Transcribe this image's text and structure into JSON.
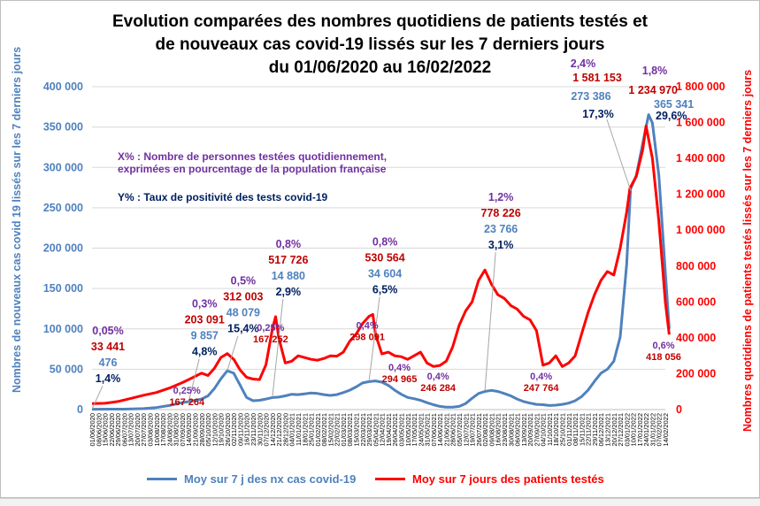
{
  "title_lines": [
    "Evolution comparées des nombres quotidiens de patients testés et",
    "de nouveaux cas covid-19 lissés sur les 7 derniers jours",
    "du 01/06/2020 au 16/02/2022"
  ],
  "notes": {
    "pct_tested": "X% : Nombre de personnes testées quotidiennement,",
    "pct_tested_2": "exprimées en pourcentage de la population française",
    "positivity": "Y% : Taux de positivité des tests covid-19"
  },
  "colors": {
    "cases": "#4f81bd",
    "tested": "#ff0000",
    "tested_label": "#c00000",
    "pct_label": "#7030a0",
    "positivity_label": "#002060",
    "grid": "#d9d9d9"
  },
  "chart_data": {
    "type": "line",
    "title": "Evolution comparées des nombres quotidiens de patients testés et de nouveaux cas covid-19 lissés sur les 7 derniers jours du 01/06/2020 au 16/02/2022",
    "ylabel": "Nombres de nouveaux cas covid 19 lissés sur les 7 derniers jours",
    "y2label": "Nombres quotidiens de patients testés lissés sur les 7 derniers jours",
    "ylim": [
      0,
      400000
    ],
    "y2lim": [
      0,
      1800000
    ],
    "y_ticks": [
      "0",
      "50 000",
      "100 000",
      "150 000",
      "200 000",
      "250 000",
      "300 000",
      "350 000",
      "400 000"
    ],
    "y2_ticks": [
      "0",
      "200 000",
      "400 000",
      "600 000",
      "800 000",
      "1 000 000",
      "1 200 000",
      "1 400 000",
      "1 600 000",
      "1 800 000"
    ],
    "x_ticks": [
      "01/06/2020",
      "08/06/2020",
      "15/06/2020",
      "22/06/2020",
      "29/06/2020",
      "06/07/2020",
      "13/07/2020",
      "20/07/2020",
      "27/07/2020",
      "03/08/2020",
      "10/08/2020",
      "17/08/2020",
      "24/08/2020",
      "31/08/2020",
      "07/09/2020",
      "14/09/2020",
      "21/09/2020",
      "28/09/2020",
      "05/10/2020",
      "12/10/2020",
      "19/10/2020",
      "26/10/2020",
      "02/11/2020",
      "09/11/2020",
      "16/11/2020",
      "23/11/2020",
      "30/11/2020",
      "07/12/2020",
      "14/12/2020",
      "21/12/2020",
      "28/12/2020",
      "04/01/2021",
      "11/01/2021",
      "18/01/2021",
      "25/01/2021",
      "01/02/2021",
      "08/02/2021",
      "15/02/2021",
      "22/02/2021",
      "01/03/2021",
      "08/03/2021",
      "15/03/2021",
      "22/03/2021",
      "29/03/2021",
      "05/04/2021",
      "12/04/2021",
      "19/04/2021",
      "26/04/2021",
      "03/05/2021",
      "10/05/2021",
      "17/05/2021",
      "24/05/2021",
      "31/05/2021",
      "07/06/2021",
      "14/06/2021",
      "21/06/2021",
      "28/06/2021",
      "05/07/2021",
      "12/07/2021",
      "19/07/2021",
      "26/07/2021",
      "02/08/2021",
      "09/08/2021",
      "16/08/2021",
      "23/08/2021",
      "30/08/2021",
      "06/09/2021",
      "13/09/2021",
      "20/09/2021",
      "27/09/2021",
      "04/10/2021",
      "11/10/2021",
      "18/10/2021",
      "25/10/2021",
      "01/11/2021",
      "08/11/2021",
      "15/11/2021",
      "22/11/2021",
      "29/11/2021",
      "06/12/2021",
      "13/12/2021",
      "20/12/2021",
      "27/12/2021",
      "03/01/2022",
      "10/01/2022",
      "17/01/2022",
      "24/01/2022",
      "31/01/2022",
      "07/02/2022",
      "14/02/2022"
    ],
    "series": [
      {
        "name": "Moy sur 7 j des nx cas covid-19",
        "axis": "left",
        "points": [
          [
            0,
            476
          ],
          [
            3,
            500
          ],
          [
            5,
            550
          ],
          [
            8,
            1200
          ],
          [
            10,
            2500
          ],
          [
            12,
            5000
          ],
          [
            14,
            8500
          ],
          [
            15,
            9857
          ],
          [
            17,
            13000
          ],
          [
            18,
            17000
          ],
          [
            19,
            26000
          ],
          [
            20,
            38000
          ],
          [
            21,
            48079
          ],
          [
            22,
            45000
          ],
          [
            23,
            30000
          ],
          [
            24,
            15000
          ],
          [
            25,
            11000
          ],
          [
            26,
            11500
          ],
          [
            27,
            13000
          ],
          [
            28,
            14880
          ],
          [
            29,
            15500
          ],
          [
            30,
            17000
          ],
          [
            31,
            19000
          ],
          [
            32,
            18500
          ],
          [
            33,
            19500
          ],
          [
            34,
            20500
          ],
          [
            35,
            20000
          ],
          [
            36,
            18500
          ],
          [
            37,
            17500
          ],
          [
            38,
            18500
          ],
          [
            39,
            21000
          ],
          [
            40,
            24000
          ],
          [
            41,
            28000
          ],
          [
            42,
            33000
          ],
          [
            43,
            34604
          ],
          [
            44,
            35500
          ],
          [
            45,
            34000
          ],
          [
            46,
            30000
          ],
          [
            47,
            24000
          ],
          [
            48,
            19000
          ],
          [
            49,
            15000
          ],
          [
            50,
            13500
          ],
          [
            51,
            11500
          ],
          [
            52,
            8500
          ],
          [
            53,
            6000
          ],
          [
            54,
            4000
          ],
          [
            55,
            3000
          ],
          [
            56,
            3000
          ],
          [
            57,
            4000
          ],
          [
            58,
            7500
          ],
          [
            59,
            14000
          ],
          [
            60,
            20000
          ],
          [
            61,
            22500
          ],
          [
            62,
            23766
          ],
          [
            63,
            22500
          ],
          [
            64,
            20000
          ],
          [
            65,
            17000
          ],
          [
            66,
            13000
          ],
          [
            67,
            10000
          ],
          [
            68,
            8000
          ],
          [
            69,
            6500
          ],
          [
            70,
            6000
          ],
          [
            71,
            5000
          ],
          [
            72,
            5500
          ],
          [
            73,
            6500
          ],
          [
            74,
            8000
          ],
          [
            75,
            11000
          ],
          [
            76,
            16000
          ],
          [
            77,
            24000
          ],
          [
            78,
            35000
          ],
          [
            79,
            45000
          ],
          [
            80,
            50000
          ],
          [
            81,
            60000
          ],
          [
            82,
            90000
          ],
          [
            83,
            180000
          ],
          [
            83.6,
            273386
          ],
          [
            84.5,
            290000
          ],
          [
            85.5,
            330000
          ],
          [
            86.4,
            365341
          ],
          [
            87,
            355000
          ],
          [
            88,
            290000
          ],
          [
            89,
            170000
          ],
          [
            89.6,
            100000
          ]
        ]
      },
      {
        "name": "Moy sur 7 jours des patients testés",
        "axis": "right",
        "points": [
          [
            0,
            33441
          ],
          [
            2,
            35000
          ],
          [
            4,
            45000
          ],
          [
            6,
            62000
          ],
          [
            8,
            80000
          ],
          [
            10,
            95000
          ],
          [
            12,
            120000
          ],
          [
            14,
            150000
          ],
          [
            15,
            167264
          ],
          [
            16,
            185000
          ],
          [
            17,
            203091
          ],
          [
            18,
            190000
          ],
          [
            19,
            230000
          ],
          [
            20,
            290000
          ],
          [
            21,
            312003
          ],
          [
            22,
            280000
          ],
          [
            23,
            220000
          ],
          [
            24,
            180000
          ],
          [
            25,
            170000
          ],
          [
            26,
            167252
          ],
          [
            27,
            250000
          ],
          [
            28,
            450000
          ],
          [
            28.5,
            517726
          ],
          [
            29,
            400000
          ],
          [
            30,
            260000
          ],
          [
            31,
            270000
          ],
          [
            32,
            300000
          ],
          [
            33,
            290000
          ],
          [
            34,
            280000
          ],
          [
            35,
            275000
          ],
          [
            36,
            285000
          ],
          [
            37,
            300000
          ],
          [
            38,
            298091
          ],
          [
            39,
            320000
          ],
          [
            40,
            380000
          ],
          [
            41,
            420000
          ],
          [
            42,
            480000
          ],
          [
            43,
            520000
          ],
          [
            43.6,
            530564
          ],
          [
            44,
            420000
          ],
          [
            45,
            310000
          ],
          [
            46,
            320000
          ],
          [
            47,
            300000
          ],
          [
            48,
            294965
          ],
          [
            49,
            280000
          ],
          [
            50,
            300000
          ],
          [
            51,
            320000
          ],
          [
            52,
            260000
          ],
          [
            53,
            240000
          ],
          [
            54,
            246284
          ],
          [
            55,
            270000
          ],
          [
            56,
            350000
          ],
          [
            57,
            470000
          ],
          [
            58,
            550000
          ],
          [
            59,
            600000
          ],
          [
            60,
            720000
          ],
          [
            61,
            778226
          ],
          [
            62,
            700000
          ],
          [
            63,
            640000
          ],
          [
            64,
            620000
          ],
          [
            65,
            580000
          ],
          [
            66,
            560000
          ],
          [
            67,
            520000
          ],
          [
            68,
            500000
          ],
          [
            69,
            440000
          ],
          [
            70,
            247764
          ],
          [
            71,
            260000
          ],
          [
            72,
            300000
          ],
          [
            73,
            240000
          ],
          [
            74,
            260000
          ],
          [
            75,
            300000
          ],
          [
            76,
            420000
          ],
          [
            77,
            540000
          ],
          [
            78,
            640000
          ],
          [
            79,
            720000
          ],
          [
            80,
            770000
          ],
          [
            81,
            750000
          ],
          [
            82,
            900000
          ],
          [
            83,
            1100000
          ],
          [
            83.5,
            1234970
          ],
          [
            84.5,
            1300000
          ],
          [
            85.5,
            1450000
          ],
          [
            86,
            1581153
          ],
          [
            87,
            1400000
          ],
          [
            88,
            1050000
          ],
          [
            89,
            600000
          ],
          [
            89.6,
            418056
          ]
        ]
      }
    ],
    "annotations": [
      {
        "x": 0,
        "pct": "0,05%",
        "tested": "33 441",
        "cases": "476",
        "pos": "1,4%"
      },
      {
        "x": 15,
        "pct": "0,3%",
        "tested": "203 091",
        "cases": "9 857",
        "pos": "4,8%",
        "pct_low": "0,25%",
        "tested_low": "167 264"
      },
      {
        "x": 21,
        "pct": "0,5%",
        "tested": "312 003",
        "cases": "48 079",
        "pos": "15,4%"
      },
      {
        "x": 28,
        "pct": "0,8%",
        "tested": "517 726",
        "cases": "14 880",
        "pos": "2,9%",
        "pct_low": "0,25%",
        "tested_low": "167 252"
      },
      {
        "x": 43,
        "pct": "0,8%",
        "tested": "530 564",
        "cases": "34 604",
        "pos": "6,5%",
        "pct_low": "0,4%",
        "tested_low": "298 091"
      },
      {
        "x": 48,
        "pct_low": "0,4%",
        "tested_low": "294 965"
      },
      {
        "x": 54,
        "pct_low": "0,4%",
        "tested_low": "246 284"
      },
      {
        "x": 61,
        "pct": "1,2%",
        "tested": "778 226",
        "cases": "23 766",
        "pos": "3,1%"
      },
      {
        "x": 70,
        "pct_low": "0,4%",
        "tested_low": "247 764"
      },
      {
        "x": 86,
        "pct": "2,4%",
        "tested": "1 581 153",
        "cases": "273 386",
        "pos": "17,3%"
      },
      {
        "x": 87,
        "pct": "1,8%",
        "tested": "1 234 970",
        "cases": "365 341",
        "pos": "29,6%"
      },
      {
        "x": 89,
        "pct_low": "0,6%",
        "tested_low": "418 056"
      }
    ]
  }
}
